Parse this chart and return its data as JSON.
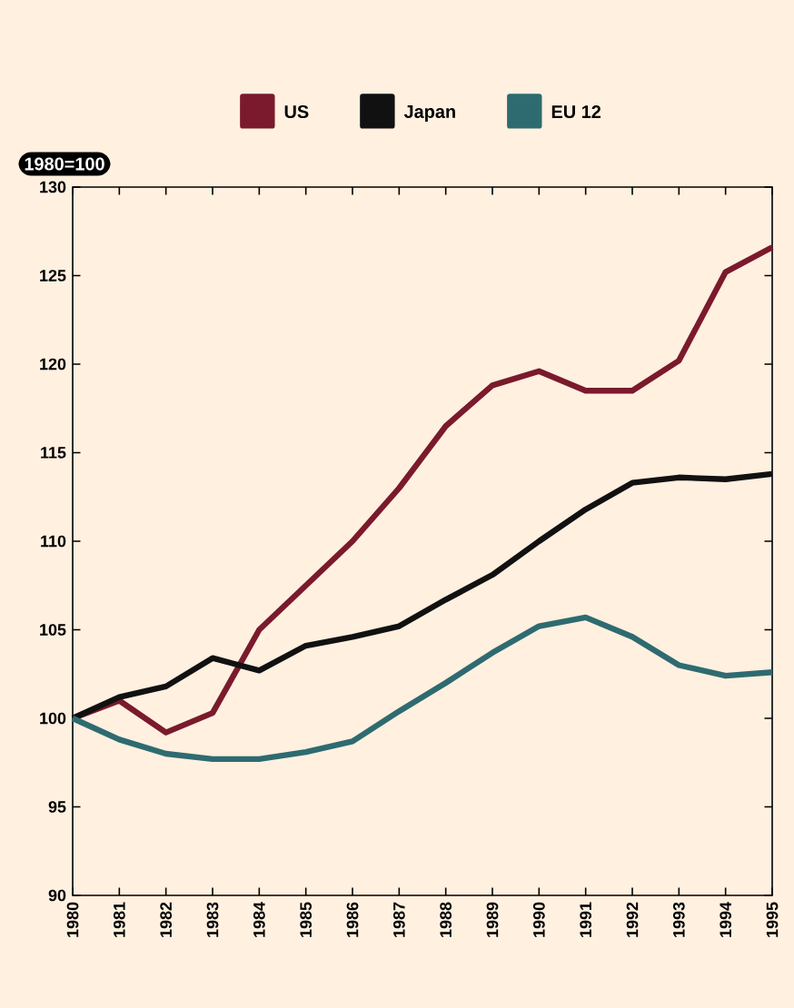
{
  "chart_data": {
    "type": "line",
    "annotations": [
      "1980=100"
    ],
    "x": [
      1980,
      1981,
      1982,
      1983,
      1984,
      1985,
      1986,
      1987,
      1988,
      1989,
      1990,
      1991,
      1992,
      1993,
      1994,
      1995
    ],
    "series": [
      {
        "name": "US",
        "color": "#7a1a2c",
        "values": [
          100,
          101,
          99.2,
          100.3,
          105,
          107.5,
          110,
          113,
          116.5,
          118.8,
          119.6,
          118.5,
          118.5,
          120.2,
          125.2,
          126.6
        ]
      },
      {
        "name": "Japan",
        "color": "#111111",
        "values": [
          100,
          101.2,
          101.8,
          103.4,
          102.7,
          104.1,
          104.6,
          105.2,
          106.7,
          108.1,
          110,
          111.8,
          113.3,
          113.6,
          113.5,
          113.8
        ]
      },
      {
        "name": "EU 12",
        "color": "#2e6b70",
        "values": [
          100,
          98.8,
          98,
          97.7,
          97.7,
          98.1,
          98.7,
          100.4,
          102,
          103.7,
          105.2,
          105.7,
          104.6,
          103,
          102.4,
          102.6
        ]
      }
    ],
    "xlim": [
      1980,
      1995
    ],
    "ylim": [
      90,
      130
    ],
    "xticks": [
      1980,
      1981,
      1982,
      1983,
      1984,
      1985,
      1986,
      1987,
      1988,
      1989,
      1990,
      1991,
      1992,
      1993,
      1994,
      1995
    ],
    "yticks": [
      90,
      95,
      100,
      105,
      110,
      115,
      120,
      125,
      130
    ],
    "grid": false,
    "legend": "top",
    "marker": "none",
    "line_style": "solid"
  }
}
